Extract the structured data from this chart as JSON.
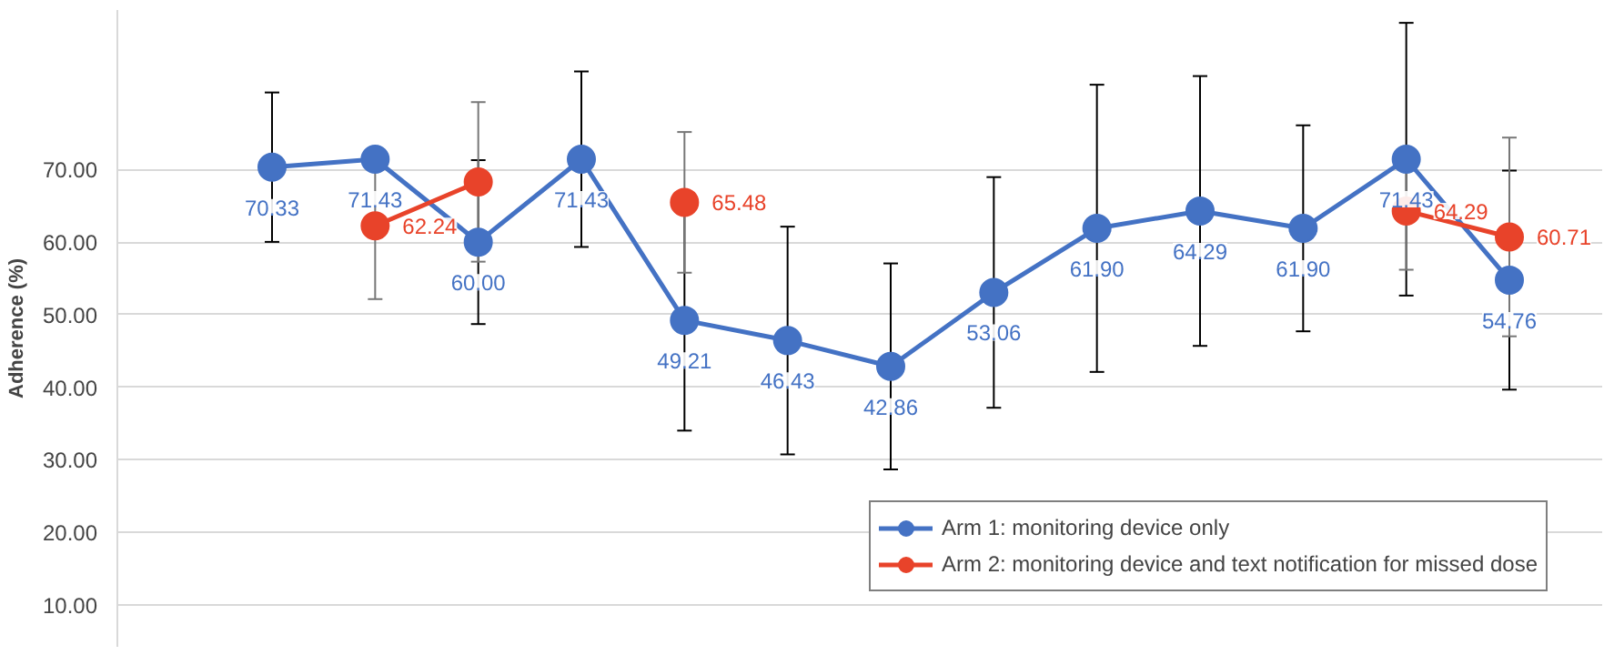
{
  "chart_data": {
    "type": "line",
    "ylabel": "Adherence (%)",
    "categories": [
      null,
      null,
      null,
      null,
      null,
      null,
      null,
      null,
      null,
      null,
      null,
      null,
      null,
      null
    ],
    "series": [
      {
        "name": "Arm 1: monitoring device only",
        "color": "#4472c4",
        "values": [
          null,
          70.33,
          71.43,
          60.0,
          71.43,
          49.21,
          46.43,
          42.86,
          53.06,
          61.9,
          64.29,
          61.9,
          71.43,
          54.76
        ],
        "errors": [
          null,
          10.3,
          null,
          11.3,
          12.1,
          15.2,
          15.7,
          14.2,
          15.9,
          19.8,
          18.6,
          14.2,
          18.8,
          15.1
        ],
        "value_labels": [
          null,
          "70.33",
          "71.43",
          "60.00",
          "71.43",
          "49.21",
          "46.43",
          "42.86",
          "53.06",
          "61.90",
          "64.29",
          "61.90",
          "71.43",
          "54.76"
        ]
      },
      {
        "name": "Arm 2: monitoring device and text notification for missed dose",
        "color": "#e8432a",
        "values": [
          null,
          null,
          62.24,
          68.3,
          null,
          65.48,
          null,
          null,
          null,
          null,
          null,
          null,
          64.29,
          60.71
        ],
        "errors": [
          null,
          null,
          10.1,
          11.0,
          null,
          9.7,
          null,
          null,
          null,
          null,
          null,
          null,
          8.1,
          13.7
        ],
        "value_labels": [
          null,
          null,
          "62.24",
          null,
          null,
          "65.48",
          null,
          null,
          null,
          null,
          null,
          null,
          "64.29",
          "60.71"
        ]
      }
    ],
    "ylim": [
      4.2,
      92
    ],
    "yticks": [
      {
        "value": 10,
        "label": "10.00"
      },
      {
        "value": 20,
        "label": "20.00"
      },
      {
        "value": 30,
        "label": "30.00"
      },
      {
        "value": 40,
        "label": "40.00"
      },
      {
        "value": 50,
        "label": "50.00"
      },
      {
        "value": 60,
        "label": "60.00"
      },
      {
        "value": 70,
        "label": "70.00"
      }
    ],
    "grid": "y",
    "legend": "bottom right",
    "marker": "circle",
    "line_style": "solid",
    "tick_labels": "y"
  }
}
